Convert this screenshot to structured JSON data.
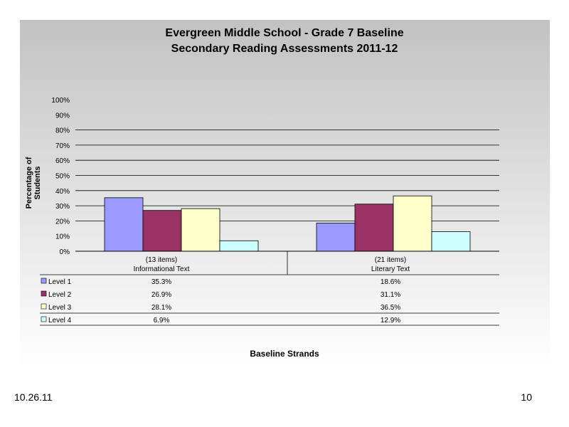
{
  "chart_data": {
    "type": "bar",
    "title": "Evergreen Middle School - Grade 7 Baseline",
    "subtitle": "Secondary Reading Assessments 2011-12",
    "ylabel": "Percentage of Students",
    "xlabel": "Baseline Strands",
    "ylim": [
      0,
      100
    ],
    "yticks": [
      "0%",
      "10%",
      "20%",
      "30%",
      "40%",
      "50%",
      "60%",
      "70%",
      "80%",
      "90%",
      "100%"
    ],
    "categories": [
      {
        "count": "(13 items)",
        "name": "Informational Text"
      },
      {
        "count": "(21 items)",
        "name": "Literary Text"
      }
    ],
    "series": [
      {
        "name": "Level 1",
        "values": [
          35.3,
          18.6
        ],
        "labels": [
          "35.3%",
          "18.6%"
        ],
        "color": "#9999ff"
      },
      {
        "name": "Level 2",
        "values": [
          26.9,
          31.1
        ],
        "labels": [
          "26.9%",
          "31.1%"
        ],
        "color": "#993366"
      },
      {
        "name": "Level 3",
        "values": [
          28.1,
          36.5
        ],
        "labels": [
          "28.1%",
          "36.5%"
        ],
        "color": "#ffffcc"
      },
      {
        "name": "Level 4",
        "values": [
          6.9,
          12.9
        ],
        "labels": [
          "6.9%",
          "12.9%"
        ],
        "color": "#ccffff"
      }
    ],
    "grid": true,
    "legend": "data-table"
  },
  "footer": {
    "date": "10.26.11",
    "page": "10"
  }
}
